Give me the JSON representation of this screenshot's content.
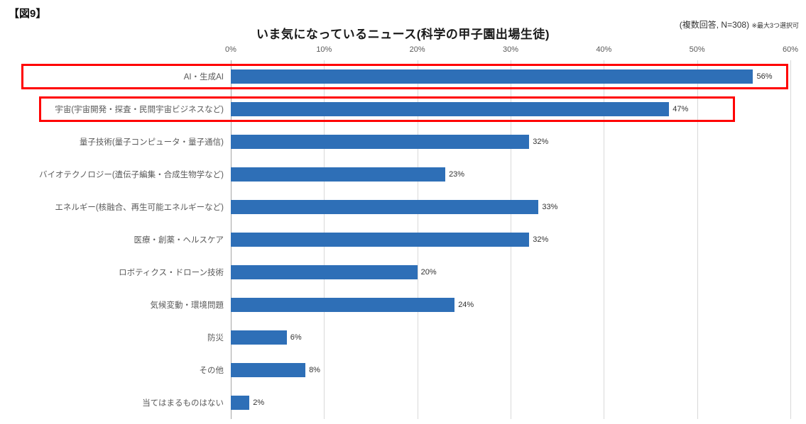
{
  "figure_label": "【図9】",
  "title": "いま気になっているニュース(科学の甲子園出場生徒)",
  "note_main": "(複数回答, N=308)",
  "note_sub": "※最大3つ選択可",
  "colors": {
    "bar": "#2e6fb7",
    "highlight": "#ff0000",
    "gridline": "#d9d9d9",
    "axis_line": "#a6a6a6"
  },
  "chart_data": {
    "type": "bar",
    "orientation": "horizontal",
    "title": "いま気になっているニュース(科学の甲子園出場生徒)",
    "categories": [
      "AI・生成AI",
      "宇宙(宇宙開発・探査・民間宇宙ビジネスなど)",
      "量子技術(量子コンピュータ・量子通信)",
      "バイオテクノロジー(遺伝子編集・合成生物学など)",
      "エネルギー(核融合、再生可能エネルギーなど)",
      "医療・創薬・ヘルスケア",
      "ロボティクス・ドローン技術",
      "気候変動・環境問題",
      "防災",
      "その他",
      "当てはまるものはない"
    ],
    "values": [
      56,
      47,
      32,
      23,
      33,
      32,
      20,
      24,
      6,
      8,
      2
    ],
    "value_labels": [
      "56%",
      "47%",
      "32%",
      "23%",
      "33%",
      "32%",
      "20%",
      "24%",
      "6%",
      "8%",
      "2%"
    ],
    "x_ticks": [
      "0%",
      "10%",
      "20%",
      "30%",
      "40%",
      "50%",
      "60%"
    ],
    "xlim": [
      0,
      60
    ],
    "grid": true,
    "legend": "none",
    "highlighted_rows": [
      0,
      1
    ]
  }
}
